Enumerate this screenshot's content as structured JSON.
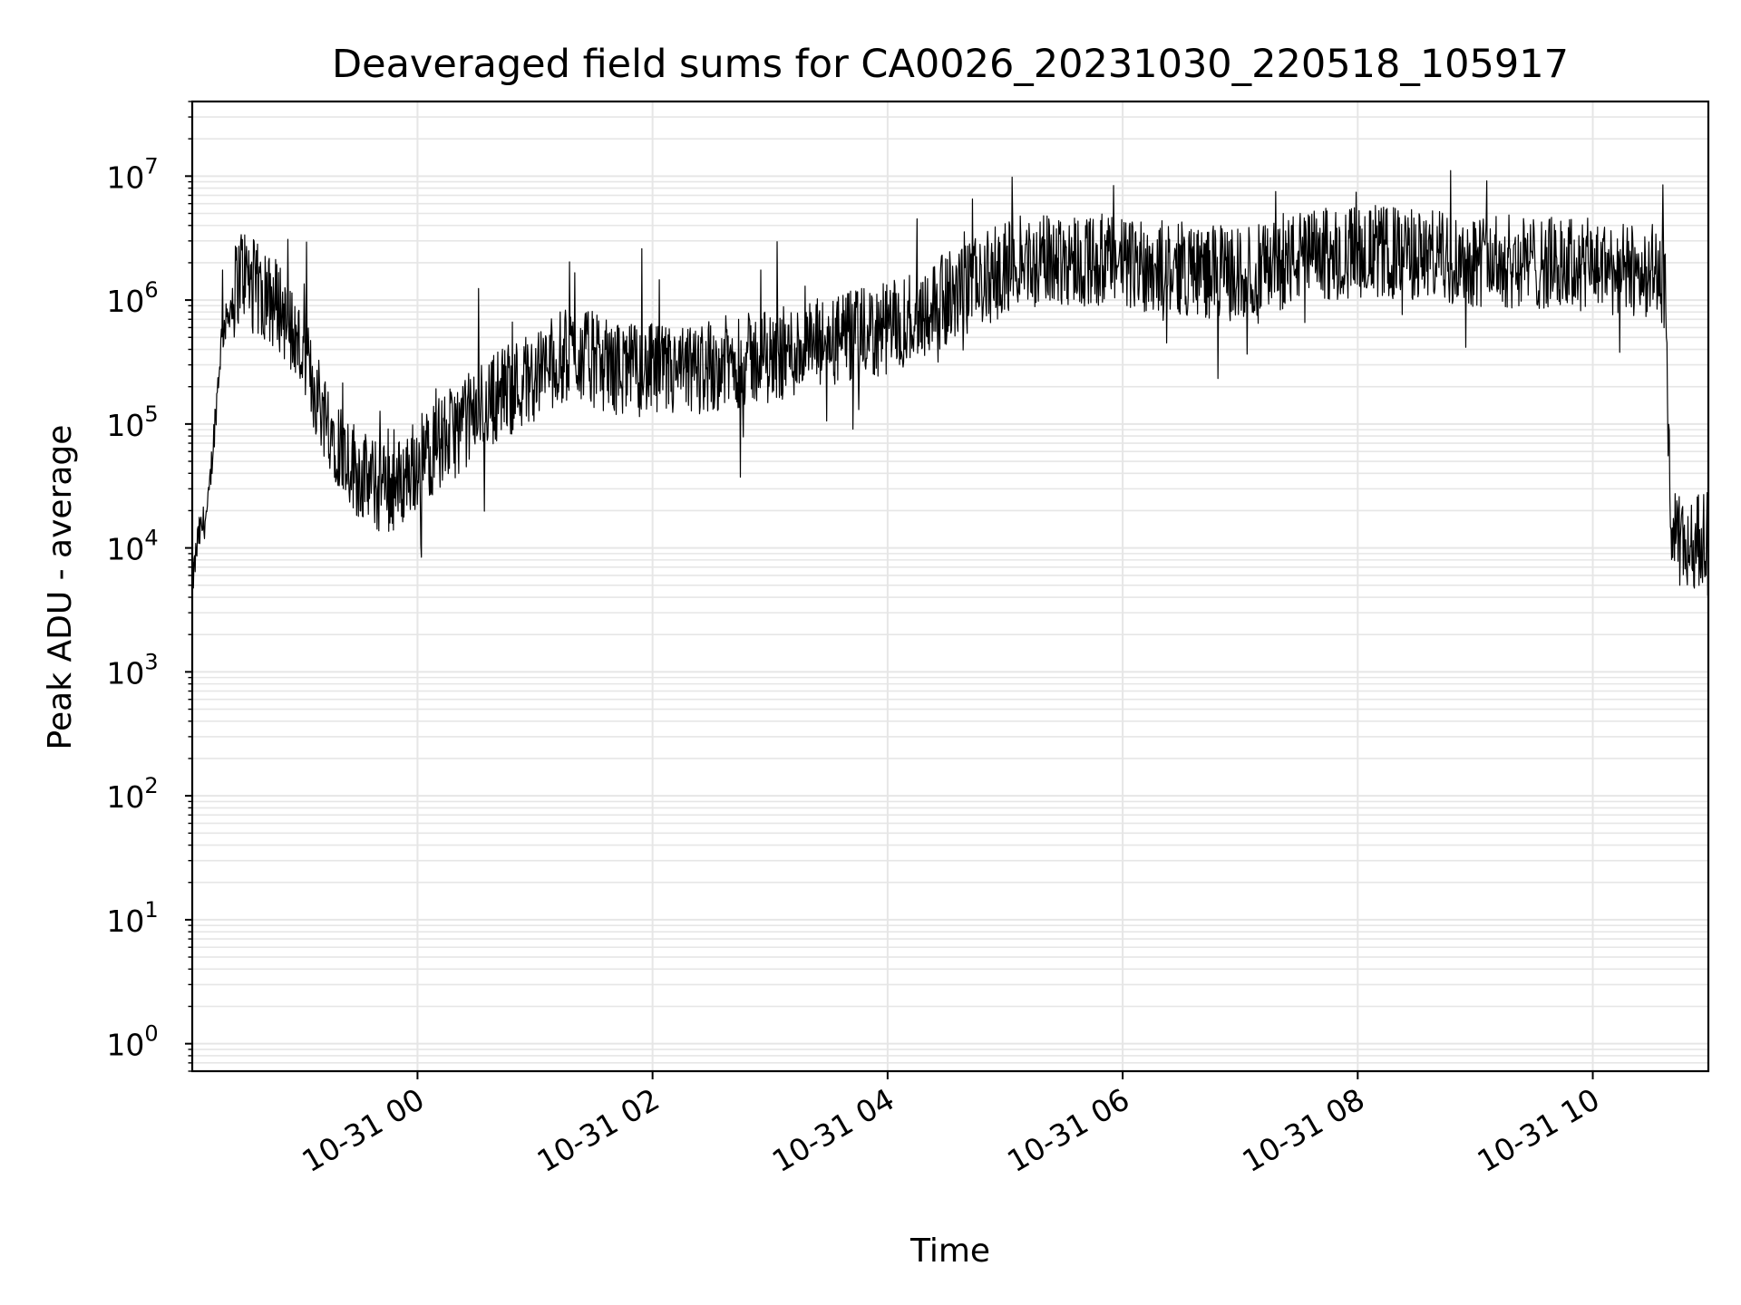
{
  "chart_data": {
    "type": "line",
    "title": "Deaveraged field sums for CA0026_20231030_220518_105917",
    "xlabel": "Time",
    "ylabel": "Peak ADU - average",
    "yscale": "log",
    "ylim": [
      0.6,
      40000000
    ],
    "xlim": [
      "10-30 22:05",
      "10-31 10:59"
    ],
    "x_ticks": [
      "10-31 00",
      "10-31 02",
      "10-31 04",
      "10-31 06",
      "10-31 08",
      "10-31 10"
    ],
    "y_ticks": [
      {
        "base": "10",
        "exp": "0"
      },
      {
        "base": "10",
        "exp": "1"
      },
      {
        "base": "10",
        "exp": "2"
      },
      {
        "base": "10",
        "exp": "3"
      },
      {
        "base": "10",
        "exp": "4"
      },
      {
        "base": "10",
        "exp": "5"
      },
      {
        "base": "10",
        "exp": "6"
      },
      {
        "base": "10",
        "exp": "7"
      }
    ],
    "grid": true,
    "line_color": "#000000",
    "grid_color": "#e6e6e6",
    "series": [
      {
        "x": [
          "10-30 22:05",
          "10-30 22:08",
          "10-30 22:13",
          "10-30 22:20",
          "10-30 22:30",
          "10-30 22:40",
          "10-30 22:50",
          "10-30 23:00",
          "10-30 23:10",
          "10-30 23:20",
          "10-30 23:30",
          "10-30 23:40",
          "10-30 23:50",
          "10-31 00:00",
          "10-31 00:20",
          "10-31 00:40",
          "10-31 01:00",
          "10-31 01:10",
          "10-31 01:20",
          "10-31 01:40",
          "10-31 02:00",
          "10-31 02:13",
          "10-31 02:30",
          "10-31 03:00",
          "10-31 03:30",
          "10-31 04:00",
          "10-31 04:20",
          "10-31 04:40",
          "10-31 05:00",
          "10-31 05:30",
          "10-31 06:00",
          "10-31 06:30",
          "10-31 07:00",
          "10-31 07:13",
          "10-31 07:30",
          "10-31 08:00",
          "10-31 08:30",
          "10-31 09:00",
          "10-31 09:30",
          "10-31 10:00",
          "10-31 10:20",
          "10-31 10:32",
          "10-31 10:37",
          "10-31 10:40",
          "10-31 10:50",
          "10-31 10:59"
        ],
        "y": [
          5000,
          12000,
          20000,
          500000,
          1800000,
          1100000,
          900000,
          400000,
          150000,
          70000,
          40000,
          30000,
          32000,
          50000,
          90000,
          170000,
          250000,
          320000,
          380000,
          280000,
          270000,
          250000,
          300000,
          350000,
          450000,
          580000,
          850000,
          1200000,
          1800000,
          2200000,
          2000000,
          1800000,
          1600000,
          1800000,
          2200000,
          2500000,
          2300000,
          2100000,
          2000000,
          1900000,
          1700000,
          1800000,
          1200000,
          12000,
          10000,
          14000
        ]
      }
    ]
  }
}
